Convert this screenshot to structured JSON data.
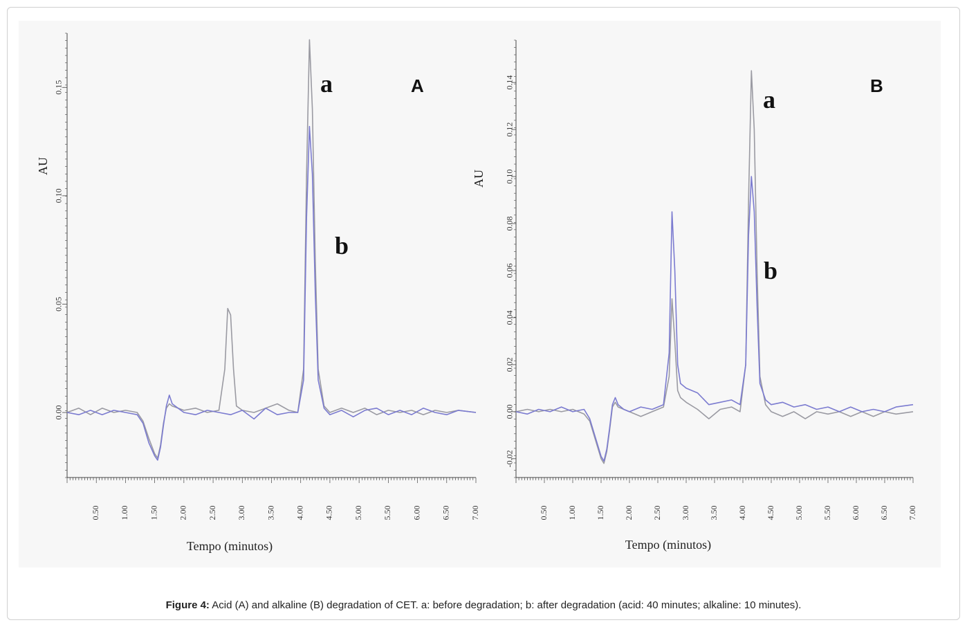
{
  "figure": {
    "caption_prefix": "Figure 4:",
    "caption_text": " Acid (A) and alkaline (B) degradation of CET. a: before degradation; b: after degradation (acid: 40 minutes; alkaline: 10 minutes)."
  },
  "colors": {
    "series_a": "#9a9aa2",
    "series_b": "#7b7bd0",
    "axis": "#444444"
  },
  "chart_data": [
    {
      "type": "line",
      "panel_label": "A",
      "xlabel": "Tempo (minutos)",
      "ylabel": "AU",
      "xlim": [
        0.0,
        7.0
      ],
      "ylim": [
        -0.03,
        0.175
      ],
      "x_ticks": [
        "0.50",
        "1.00",
        "1.50",
        "2.00",
        "2.50",
        "3.00",
        "3.50",
        "4.00",
        "4.50",
        "5.00",
        "5.50",
        "6.00",
        "6.50",
        "7.00"
      ],
      "x_tick_values": [
        0.5,
        1,
        1.5,
        2,
        2.5,
        3,
        3.5,
        4,
        4.5,
        5,
        5.5,
        6,
        6.5,
        7
      ],
      "y_ticks": [
        "0.00",
        "0.05",
        "0.10",
        "0.15"
      ],
      "y_tick_values": [
        0,
        0.05,
        0.1,
        0.15
      ],
      "series": [
        {
          "name": "a",
          "x": [
            0.0,
            0.2,
            0.4,
            0.6,
            0.8,
            1.0,
            1.2,
            1.3,
            1.4,
            1.5,
            1.55,
            1.6,
            1.65,
            1.7,
            1.75,
            1.8,
            1.9,
            2.0,
            2.2,
            2.4,
            2.6,
            2.7,
            2.75,
            2.8,
            2.85,
            2.9,
            3.0,
            3.2,
            3.4,
            3.6,
            3.8,
            3.95,
            4.05,
            4.1,
            4.15,
            4.2,
            4.25,
            4.3,
            4.4,
            4.5,
            4.7,
            4.9,
            5.1,
            5.3,
            5.5,
            5.7,
            5.9,
            6.1,
            6.3,
            6.5,
            6.7,
            7.0
          ],
          "y": [
            0.0,
            0.002,
            -0.001,
            0.002,
            0.0,
            0.001,
            0.0,
            -0.004,
            -0.012,
            -0.019,
            -0.021,
            -0.015,
            -0.005,
            0.002,
            0.004,
            0.003,
            0.002,
            0.001,
            0.002,
            0.0,
            0.001,
            0.02,
            0.048,
            0.045,
            0.02,
            0.003,
            0.001,
            0.0,
            0.002,
            0.004,
            0.001,
            0.0,
            0.02,
            0.11,
            0.172,
            0.14,
            0.07,
            0.02,
            0.003,
            0.0,
            0.002,
            0.0,
            0.002,
            -0.001,
            0.001,
            0.0,
            0.001,
            -0.001,
            0.001,
            0.0,
            0.001,
            0.0
          ]
        },
        {
          "name": "b",
          "x": [
            0.0,
            0.2,
            0.4,
            0.6,
            0.8,
            1.0,
            1.2,
            1.3,
            1.4,
            1.5,
            1.55,
            1.6,
            1.65,
            1.7,
            1.75,
            1.8,
            1.9,
            2.0,
            2.2,
            2.4,
            2.6,
            2.8,
            3.0,
            3.2,
            3.4,
            3.6,
            3.8,
            3.95,
            4.05,
            4.1,
            4.15,
            4.2,
            4.25,
            4.3,
            4.4,
            4.5,
            4.7,
            4.9,
            5.1,
            5.3,
            5.5,
            5.7,
            5.9,
            6.1,
            6.3,
            6.5,
            6.7,
            7.0
          ],
          "y": [
            0.0,
            -0.001,
            0.001,
            -0.001,
            0.001,
            0.0,
            -0.001,
            -0.005,
            -0.014,
            -0.02,
            -0.022,
            -0.016,
            -0.006,
            0.003,
            0.008,
            0.004,
            0.002,
            0.0,
            -0.001,
            0.001,
            0.0,
            -0.001,
            0.001,
            -0.003,
            0.002,
            -0.001,
            0.0,
            0.0,
            0.015,
            0.09,
            0.132,
            0.11,
            0.055,
            0.015,
            0.002,
            -0.001,
            0.001,
            -0.002,
            0.001,
            0.002,
            -0.001,
            0.001,
            -0.001,
            0.002,
            0.0,
            -0.001,
            0.001,
            0.0
          ]
        }
      ]
    },
    {
      "type": "line",
      "panel_label": "B",
      "xlabel": "Tempo (minutos)",
      "ylabel": "AU",
      "xlim": [
        0.0,
        7.0
      ],
      "ylim": [
        -0.028,
        0.158
      ],
      "x_ticks": [
        "0.50",
        "1.00",
        "1.50",
        "2.00",
        "2.50",
        "3.00",
        "3.50",
        "4.00",
        "4.50",
        "5.00",
        "5.50",
        "6.00",
        "6.50",
        "7.00"
      ],
      "x_tick_values": [
        0.5,
        1,
        1.5,
        2,
        2.5,
        3,
        3.5,
        4,
        4.5,
        5,
        5.5,
        6,
        6.5,
        7
      ],
      "y_ticks": [
        "-0.02",
        "0.00",
        "0.02",
        "0.04",
        "0.06",
        "0.08",
        "0.10",
        "0.12",
        "0.14"
      ],
      "y_tick_values": [
        -0.02,
        0.0,
        0.02,
        0.04,
        0.06,
        0.08,
        0.1,
        0.12,
        0.14
      ],
      "series": [
        {
          "name": "a",
          "x": [
            0.0,
            0.2,
            0.4,
            0.6,
            0.8,
            1.0,
            1.2,
            1.3,
            1.4,
            1.5,
            1.55,
            1.6,
            1.65,
            1.7,
            1.75,
            1.8,
            1.9,
            2.0,
            2.2,
            2.4,
            2.6,
            2.7,
            2.75,
            2.8,
            2.85,
            2.9,
            3.0,
            3.2,
            3.4,
            3.6,
            3.8,
            3.95,
            4.05,
            4.1,
            4.15,
            4.2,
            4.25,
            4.3,
            4.4,
            4.5,
            4.7,
            4.9,
            5.1,
            5.3,
            5.5,
            5.7,
            5.9,
            6.1,
            6.3,
            6.5,
            6.7,
            7.0
          ],
          "y": [
            0.0,
            0.001,
            0.0,
            0.001,
            0.0,
            0.001,
            -0.001,
            -0.004,
            -0.012,
            -0.02,
            -0.022,
            -0.017,
            -0.008,
            0.002,
            0.004,
            0.002,
            0.001,
            0.0,
            -0.002,
            0.0,
            0.002,
            0.015,
            0.048,
            0.03,
            0.009,
            0.006,
            0.004,
            0.001,
            -0.003,
            0.001,
            0.002,
            0.0,
            0.02,
            0.09,
            0.145,
            0.12,
            0.06,
            0.015,
            0.003,
            0.0,
            -0.002,
            0.0,
            -0.003,
            0.0,
            -0.001,
            0.0,
            -0.002,
            0.0,
            -0.002,
            0.0,
            -0.001,
            0.0
          ]
        },
        {
          "name": "b",
          "x": [
            0.0,
            0.2,
            0.4,
            0.6,
            0.8,
            1.0,
            1.2,
            1.3,
            1.4,
            1.5,
            1.55,
            1.6,
            1.65,
            1.7,
            1.75,
            1.8,
            1.9,
            2.0,
            2.2,
            2.4,
            2.6,
            2.7,
            2.75,
            2.8,
            2.85,
            2.9,
            3.0,
            3.2,
            3.4,
            3.6,
            3.8,
            3.95,
            4.05,
            4.1,
            4.15,
            4.2,
            4.25,
            4.3,
            4.4,
            4.5,
            4.7,
            4.9,
            5.1,
            5.3,
            5.5,
            5.7,
            5.9,
            6.1,
            6.3,
            6.5,
            6.7,
            7.0
          ],
          "y": [
            0.0,
            -0.001,
            0.001,
            0.0,
            0.002,
            0.0,
            0.001,
            -0.003,
            -0.011,
            -0.019,
            -0.021,
            -0.016,
            -0.007,
            0.003,
            0.006,
            0.003,
            0.001,
            0.0,
            0.002,
            0.001,
            0.003,
            0.025,
            0.085,
            0.06,
            0.02,
            0.012,
            0.01,
            0.008,
            0.003,
            0.004,
            0.005,
            0.003,
            0.02,
            0.075,
            0.1,
            0.085,
            0.045,
            0.012,
            0.005,
            0.003,
            0.004,
            0.002,
            0.003,
            0.001,
            0.002,
            0.0,
            0.002,
            0.0,
            0.001,
            0.0,
            0.002,
            0.003
          ]
        }
      ]
    }
  ]
}
